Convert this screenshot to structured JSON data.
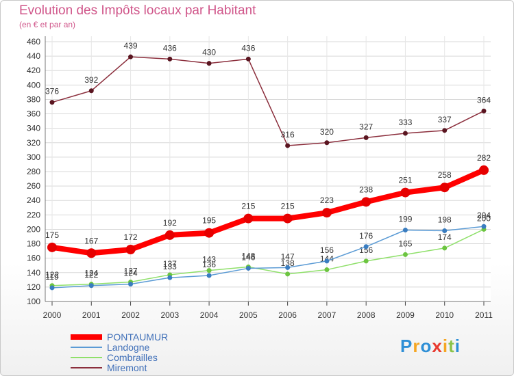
{
  "chart_data": {
    "type": "line",
    "title": "Evolution des Impôts locaux par Habitant",
    "subtitle": "(en € et par an)",
    "xlabel": "",
    "ylabel": "",
    "ylim": [
      100,
      460
    ],
    "ytick_step": 20,
    "grid": true,
    "legend_position": "bottom-left",
    "categories": [
      "2000",
      "2001",
      "2002",
      "2003",
      "2004",
      "2005",
      "2006",
      "2007",
      "2008",
      "2009",
      "2010",
      "2011"
    ],
    "series": [
      {
        "name": "PONTAUMUR",
        "color": "#ff0000",
        "marker_color": "#e60000",
        "emphasis": true,
        "values": [
          175,
          167,
          172,
          192,
          195,
          215,
          215,
          223,
          238,
          251,
          258,
          282
        ]
      },
      {
        "name": "Landogne",
        "color": "#5b9bd5",
        "marker_color": "#3a7dc0",
        "emphasis": false,
        "values": [
          119,
          122,
          124,
          133,
          136,
          146,
          147,
          156,
          176,
          199,
          198,
          204
        ]
      },
      {
        "name": "Combrailles",
        "color": "#8fe06a",
        "marker_color": "#6cc440",
        "emphasis": false,
        "values": [
          122,
          124,
          127,
          137,
          143,
          148,
          138,
          144,
          156,
          165,
          174,
          200
        ]
      },
      {
        "name": "Miremont",
        "color": "#8b2e3c",
        "marker_color": "#5a1520",
        "emphasis": false,
        "values": [
          376,
          392,
          439,
          436,
          430,
          436,
          316,
          320,
          327,
          333,
          337,
          364
        ]
      }
    ]
  },
  "logo": {
    "text": "Proxiti",
    "letters": [
      "P",
      "r",
      "o",
      "x",
      "i",
      "t",
      "i"
    ],
    "colors": [
      "#2e8fd6",
      "#f5a623",
      "#2e8fd6",
      "#e8392f",
      "#f5a623",
      "#8bc34a",
      "#2e8fd6"
    ]
  }
}
